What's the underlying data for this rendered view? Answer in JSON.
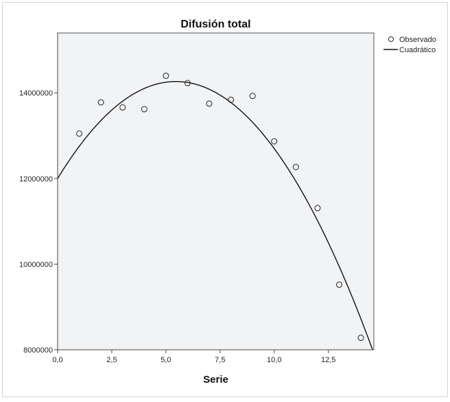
{
  "chart_data": {
    "type": "scatter",
    "title": "Difusión total",
    "xlabel": "Serie",
    "ylabel": "",
    "xlim": [
      0,
      14.6
    ],
    "ylim": [
      8000000,
      15400000
    ],
    "xticks": [
      0,
      2.5,
      5,
      7.5,
      10,
      12.5
    ],
    "xtick_labels": [
      "0,0",
      "2,5",
      "5,0",
      "7,5",
      "10,0",
      "12,5"
    ],
    "yticks": [
      8000000,
      10000000,
      12000000,
      14000000
    ],
    "ytick_labels": [
      "8000000",
      "10000000",
      "12000000",
      "14000000"
    ],
    "grid": false,
    "legend": "top-right",
    "series": [
      {
        "name": "Observado",
        "kind": "points",
        "x": [
          1,
          2,
          3,
          4,
          5,
          6,
          7,
          8,
          9,
          10,
          11,
          12,
          13,
          14
        ],
        "y": [
          13050000,
          13780000,
          13660000,
          13620000,
          14400000,
          14230000,
          13750000,
          13840000,
          13930000,
          12870000,
          12270000,
          11310000,
          9520000,
          8280000
        ]
      },
      {
        "name": "Cuadrático",
        "kind": "curve",
        "coefficients": {
          "a": -76000,
          "b": 830000,
          "c": 12000000
        }
      }
    ],
    "colors": {
      "plot_background": "#f2f3f5",
      "marker": "#222222",
      "curve": "#111111"
    }
  }
}
